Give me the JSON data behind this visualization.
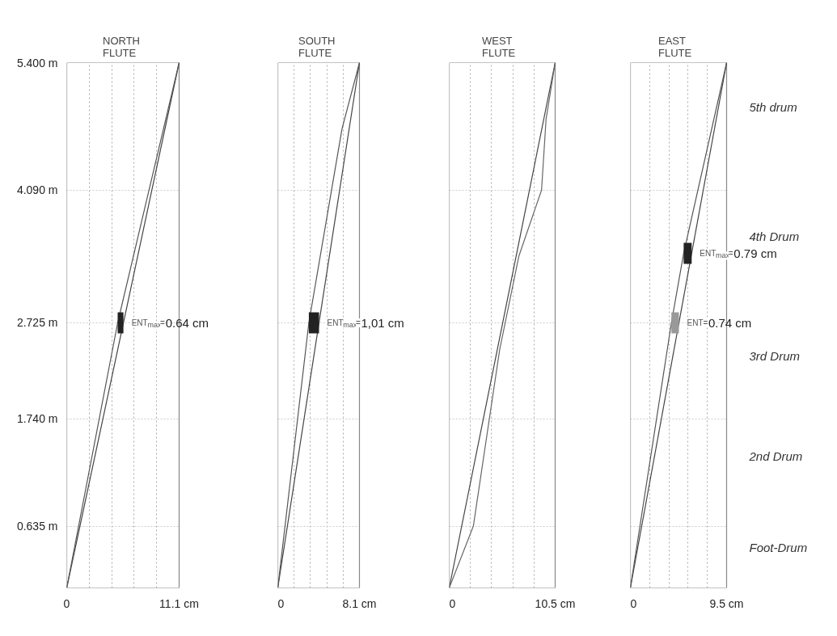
{
  "chart_data": [
    {
      "type": "line",
      "title": "NORTH\nFLUTE",
      "xlim": [
        0,
        11.1
      ],
      "ylim": [
        0,
        5.4
      ],
      "grid": true,
      "xticks": [
        0,
        {
          "value": 2.22,
          "label": null
        },
        {
          "value": 4.44,
          "label": null
        },
        {
          "value": 6.66,
          "label": null
        },
        {
          "value": 8.88,
          "label": null
        },
        {
          "value": 11.1,
          "label": "11.1 cm"
        }
      ],
      "yticks": [
        {
          "value": 0.635,
          "label": "0.635 m"
        },
        {
          "value": 1.74,
          "label": "1.740 m"
        },
        {
          "value": 2.725,
          "label": "2.725 m"
        },
        {
          "value": 4.09,
          "label": "4.090 m"
        },
        {
          "value": 5.4,
          "label": "5.400 m"
        }
      ],
      "series": [
        {
          "x": [
            0,
            11.1
          ],
          "values": [
            0,
            5.4
          ],
          "color": "#444444"
        },
        {
          "x": [
            0,
            5.03,
            11.1
          ],
          "values": [
            0,
            2.725,
            5.4
          ],
          "color": "#555555"
        },
        {
          "x": [
            5.03,
            5.6
          ],
          "values": [
            2.725,
            2.725
          ],
          "color": "#222222"
        }
      ],
      "annotations": [
        {
          "text": "ENT$_{max}$=0.64 cm",
          "x": 5.6,
          "y": 2.725
        }
      ]
    },
    {
      "type": "line",
      "title": "SOUTH\nFLUTE",
      "xlim": [
        0,
        8.1
      ],
      "ylim": [
        0,
        5.4
      ],
      "grid": true,
      "tick_labels": "x",
      "xticks": [
        0,
        {
          "value": 1.62,
          "label": null
        },
        {
          "value": 3.24,
          "label": null
        },
        {
          "value": 4.86,
          "label": null
        },
        {
          "value": 6.48,
          "label": null
        },
        {
          "value": 8.1,
          "label": "8.1 cm"
        }
      ],
      "yticks": [
        {
          "value": 0.635,
          "label": null
        },
        {
          "value": 1.74,
          "label": null
        },
        {
          "value": 2.725,
          "label": null
        },
        {
          "value": 4.09,
          "label": null
        },
        {
          "value": 5.4,
          "label": null
        }
      ],
      "series": [
        {
          "x": [
            0,
            8.1
          ],
          "values": [
            0,
            5.4
          ],
          "color": "#444444"
        },
        {
          "x": [
            0,
            3.08,
            6.37,
            8.1
          ],
          "values": [
            0,
            2.725,
            4.72,
            5.4
          ],
          "color": "#555555"
        },
        {
          "x": [
            3.08,
            4.09
          ],
          "values": [
            2.725,
            2.725
          ],
          "color": "#222222"
        }
      ],
      "annotations": [
        {
          "text": "ENT$_{max}$=1,01 cm",
          "x": 4.09,
          "y": 2.725
        }
      ]
    },
    {
      "type": "line",
      "title": "WEST\nFLUTE",
      "xlim": [
        0,
        10.5
      ],
      "ylim": [
        0,
        5.4
      ],
      "grid": true,
      "tick_labels": "x",
      "xticks": [
        0,
        {
          "value": 2.1,
          "label": null
        },
        {
          "value": 4.2,
          "label": null
        },
        {
          "value": 6.3,
          "label": null
        },
        {
          "value": 8.4,
          "label": null
        },
        {
          "value": 10.5,
          "label": "10.5 cm"
        }
      ],
      "yticks": [
        {
          "value": 0.635,
          "label": null
        },
        {
          "value": 1.74,
          "label": null
        },
        {
          "value": 2.725,
          "label": null
        },
        {
          "value": 4.09,
          "label": null
        },
        {
          "value": 5.4,
          "label": null
        }
      ],
      "series": [
        {
          "x": [
            0,
            10.5
          ],
          "values": [
            0,
            5.4
          ],
          "color": "#444444"
        },
        {
          "x": [
            0,
            2.39,
            5.0,
            6.9,
            9.15,
            9.6,
            10.5
          ],
          "values": [
            0,
            0.635,
            2.45,
            3.41,
            4.09,
            4.82,
            5.4
          ],
          "color": "#666666"
        }
      ]
    },
    {
      "type": "line",
      "title": "EAST\nFLUTE",
      "xlim": [
        0,
        9.5
      ],
      "ylim": [
        0,
        5.4
      ],
      "grid": true,
      "tick_labels": "x",
      "xticks": [
        0,
        {
          "value": 1.9,
          "label": null
        },
        {
          "value": 3.8,
          "label": null
        },
        {
          "value": 5.7,
          "label": null
        },
        {
          "value": 7.6,
          "label": null
        },
        {
          "value": 9.5,
          "label": "9.5 cm"
        }
      ],
      "yticks": [
        {
          "value": 0.635,
          "label": null
        },
        {
          "value": 1.74,
          "label": null
        },
        {
          "value": 2.725,
          "label": null
        },
        {
          "value": 4.09,
          "label": null
        },
        {
          "value": 5.4,
          "label": null
        }
      ],
      "series": [
        {
          "x": [
            0,
            9.5
          ],
          "values": [
            0,
            5.4
          ],
          "color": "#444444"
        },
        {
          "x": [
            0,
            4.05,
            5.26,
            9.5
          ],
          "values": [
            0,
            2.725,
            3.44,
            5.4
          ],
          "color": "#555555"
        },
        {
          "x": [
            5.26,
            6.05
          ],
          "values": [
            3.44,
            3.44
          ],
          "color": "#222222"
        },
        {
          "x": [
            4.05,
            4.79
          ],
          "values": [
            2.725,
            2.725
          ],
          "color": "#999999"
        }
      ],
      "annotations": [
        {
          "text": "ENT$_{max}$=0.79 cm",
          "x": 6.05,
          "y": 3.44
        },
        {
          "text": "ENT=0.74 cm",
          "x": 4.79,
          "y": 2.725
        },
        "5th drum",
        "4th Drum",
        "3rd Drum",
        "2nd Drum",
        "Foot-Drum"
      ]
    }
  ]
}
